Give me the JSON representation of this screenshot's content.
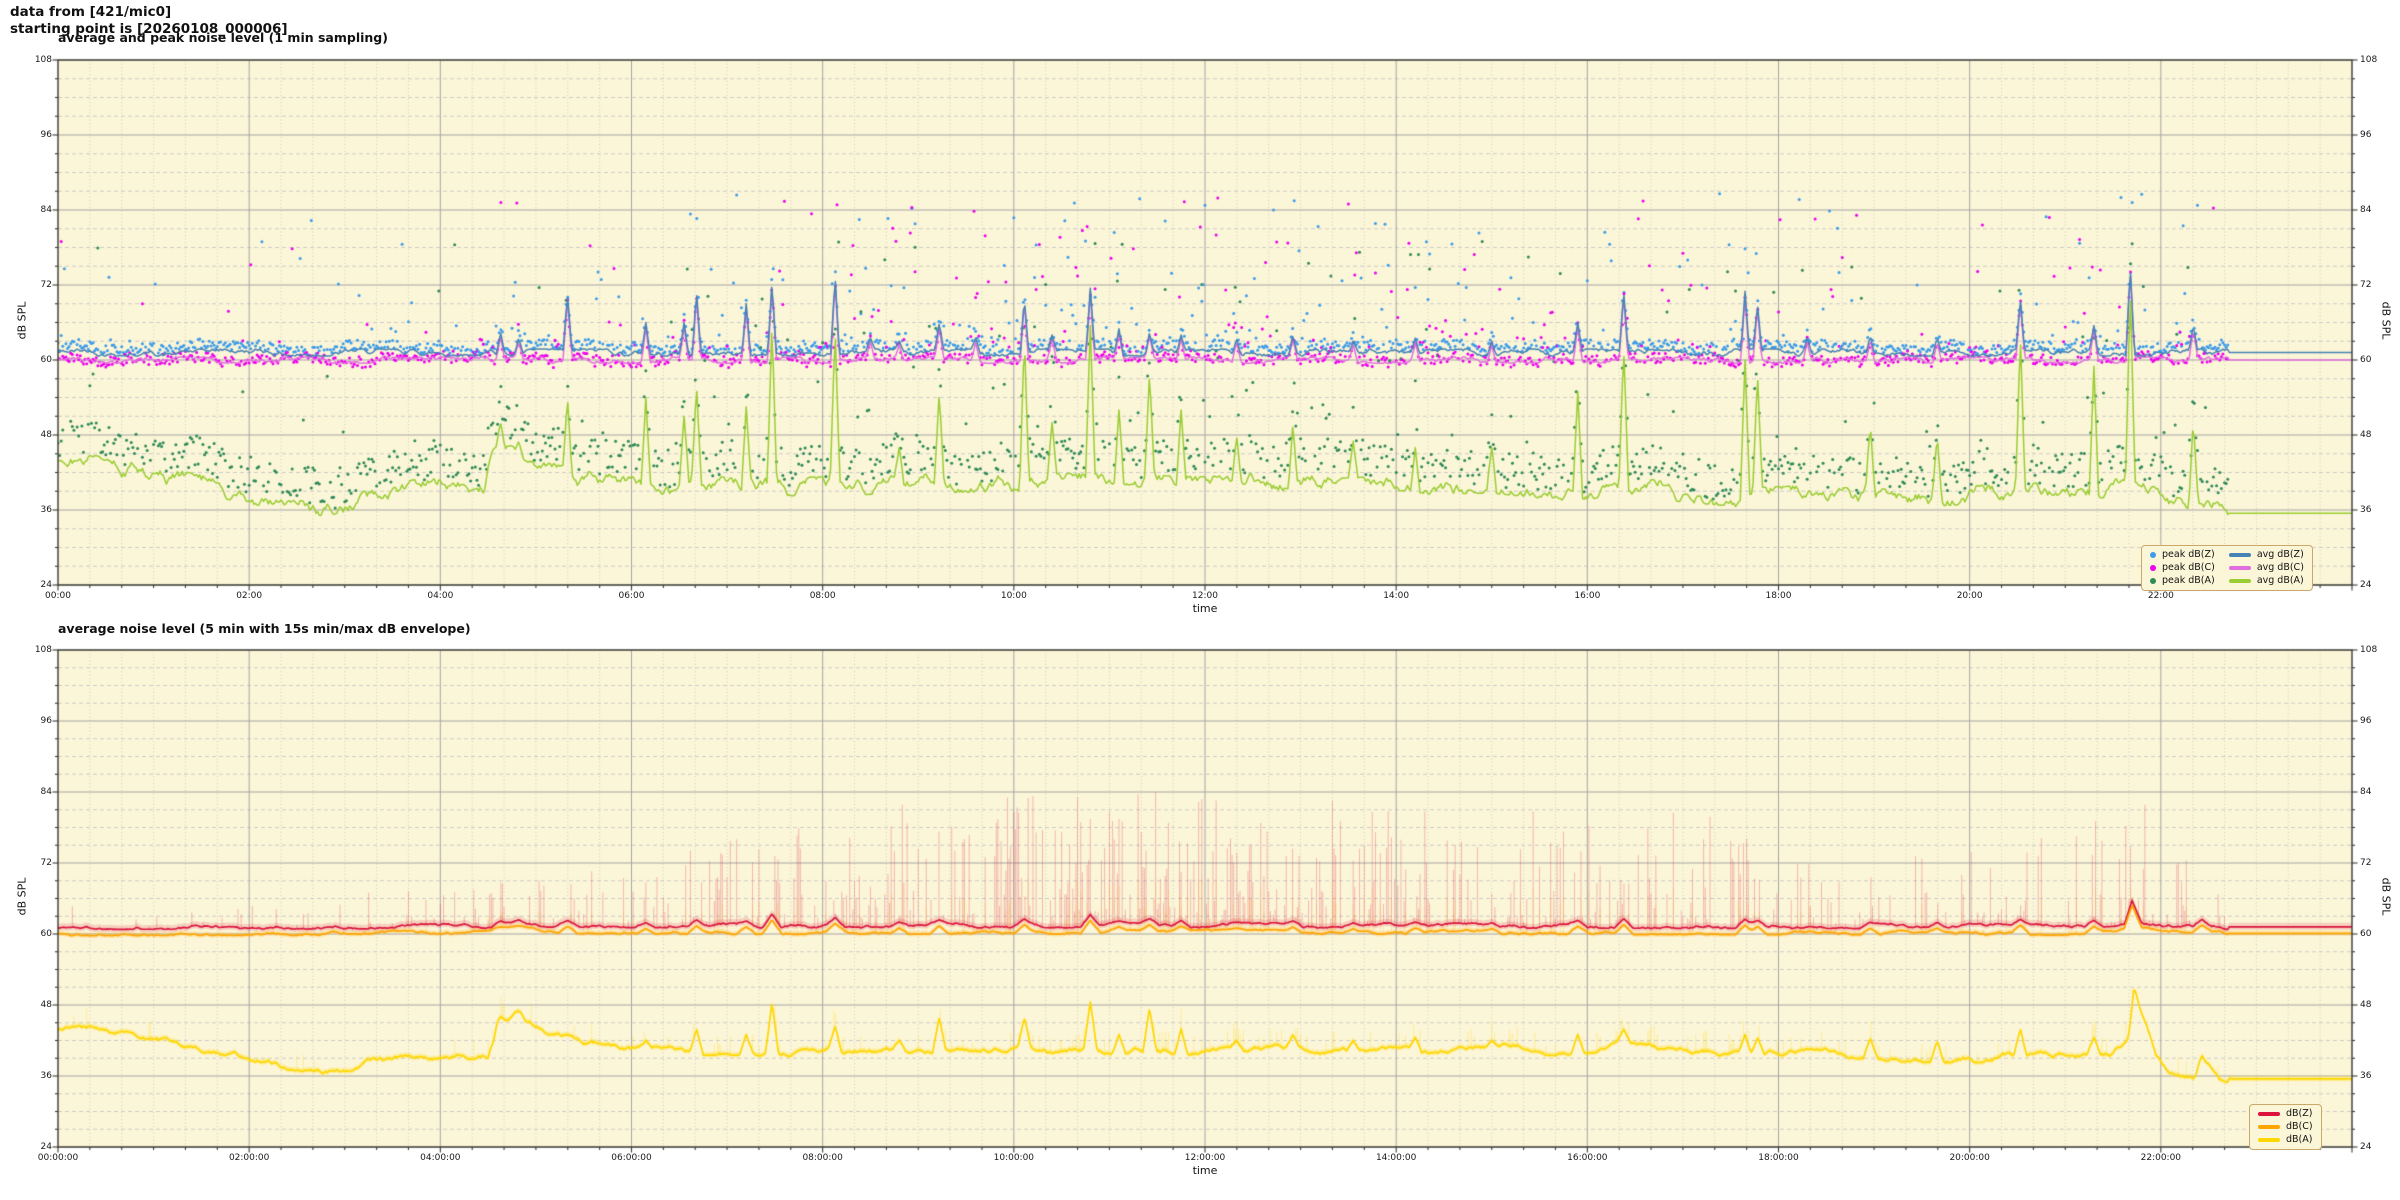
{
  "header": {
    "line1": "data from [421/mic0]",
    "line2": "starting point is [20260108_000006]"
  },
  "labels": {
    "time": "time",
    "db_spl": "dB SPL"
  },
  "colors": {
    "figure_bg": "#ffffff",
    "plot_bg": "#fcf6d8",
    "spine": "#3a3a32",
    "grid_major": "#a5a5a5",
    "grid_minor": "#c7c7c7",
    "tick_text": "#1a1a1a",
    "legend_bg": "#fcf6d8",
    "legend_border": "#c9a86a",
    "peak_z": "#3d9ce9",
    "peak_c": "#ee00ee",
    "peak_a": "#2e8b57",
    "avg_z": "#4682b4",
    "avg_c": "#e26ede",
    "avg_a": "#9acd32",
    "db_z": "#dc143c",
    "db_c": "#ffa500",
    "db_a": "#ffd700",
    "envelope": "rgba(220,20,60,0.28)",
    "envelope_band": "rgba(220,20,60,0.16)",
    "envelope_c": "rgba(255,165,0,0.22)",
    "envelope_a": "rgba(255,215,0,0.30)"
  },
  "chart_data": [
    {
      "type": "line+scatter",
      "title": "average and peak noise level (1 min sampling)",
      "xlabel": "time",
      "ylabel": "dB SPL",
      "ylim": [
        24,
        108
      ],
      "y_major_step": 12,
      "y_minor_step": 3,
      "x_hours": 24,
      "x_major_step_hours": 2,
      "x_minor_step_hours": 0.33333,
      "x_tick_labels": [
        "00:00",
        "02:00",
        "04:00",
        "06:00",
        "08:00",
        "10:00",
        "12:00",
        "14:00",
        "16:00",
        "18:00",
        "20:00",
        "22:00"
      ],
      "y_tick_labels": [
        "108",
        "96",
        "84",
        "72",
        "60",
        "48",
        "36",
        "24"
      ],
      "data_end_hour": 22.7,
      "grid": true,
      "legend_entries": [
        {
          "label": "peak dB(Z)",
          "marker": "dot",
          "color_key": "peak_z"
        },
        {
          "label": "peak dB(C)",
          "marker": "dot",
          "color_key": "peak_c"
        },
        {
          "label": "peak dB(A)",
          "marker": "dot",
          "color_key": "peak_a"
        },
        {
          "label": "avg dB(Z)",
          "marker": "line",
          "color_key": "avg_z"
        },
        {
          "label": "avg dB(C)",
          "marker": "line",
          "color_key": "avg_c"
        },
        {
          "label": "avg dB(A)",
          "marker": "line",
          "color_key": "avg_a"
        }
      ],
      "series": {
        "avg_z": {
          "label": "avg dB(Z)",
          "baseline_db": 61.2,
          "noise_db": 0.35
        },
        "avg_c": {
          "label": "avg dB(C)",
          "baseline_db": 60.0,
          "noise_db": 0.3
        },
        "avg_a": {
          "label": "avg dB(A)",
          "noise_db": 0.9,
          "base_path": [
            [
              0,
              43.5
            ],
            [
              0.6,
              43
            ],
            [
              1.2,
              41
            ],
            [
              2.0,
              38.5
            ],
            [
              2.8,
              36.5
            ],
            [
              3.2,
              38
            ],
            [
              3.8,
              39.5
            ],
            [
              4.45,
              39.5
            ],
            [
              4.55,
              45.5
            ],
            [
              4.75,
              46.5
            ],
            [
              5.0,
              44.5
            ],
            [
              5.15,
              42
            ],
            [
              5.6,
              40.5
            ],
            [
              6.2,
              39.5
            ],
            [
              7.0,
              39.8
            ],
            [
              8.0,
              39.8
            ],
            [
              9.0,
              40.2
            ],
            [
              10.0,
              40.5
            ],
            [
              11.0,
              40.2
            ],
            [
              12.0,
              39.8
            ],
            [
              12.7,
              40.5
            ],
            [
              13.4,
              39.6
            ],
            [
              14.1,
              40
            ],
            [
              15.0,
              40.2
            ],
            [
              15.8,
              39
            ],
            [
              16.4,
              39.8
            ],
            [
              17.0,
              38.8
            ],
            [
              17.6,
              38
            ],
            [
              18.3,
              38.4
            ],
            [
              19.0,
              37.8
            ],
            [
              19.7,
              38.2
            ],
            [
              20.4,
              38.6
            ],
            [
              21.0,
              39
            ],
            [
              21.5,
              39.6
            ],
            [
              21.9,
              38.5
            ],
            [
              22.15,
              36.5
            ],
            [
              22.45,
              36
            ],
            [
              22.7,
              35.5
            ],
            [
              24,
              35.5
            ]
          ]
        }
      },
      "spike_width_hours": 0.045,
      "spike_events": [
        [
          4.63,
          64.5,
          50
        ],
        [
          4.82,
          63.5,
          47
        ],
        [
          5.33,
          70.5,
          54
        ],
        [
          6.15,
          66,
          54
        ],
        [
          6.55,
          66,
          51
        ],
        [
          6.68,
          71,
          56
        ],
        [
          7.2,
          69,
          52.5
        ],
        [
          7.47,
          72.5,
          66
        ],
        [
          8.13,
          73.5,
          65
        ],
        [
          8.5,
          63.5,
          null
        ],
        [
          8.8,
          63,
          46
        ],
        [
          9.22,
          66,
          55
        ],
        [
          9.6,
          63.5,
          null
        ],
        [
          10.11,
          70,
          64
        ],
        [
          10.4,
          64,
          50
        ],
        [
          10.8,
          71.5,
          65.5
        ],
        [
          11.1,
          65,
          52
        ],
        [
          11.42,
          64.5,
          58
        ],
        [
          11.75,
          64,
          52
        ],
        [
          12.33,
          63.5,
          48
        ],
        [
          12.92,
          64,
          50
        ],
        [
          13.55,
          63,
          47
        ],
        [
          14.2,
          63.5,
          46
        ],
        [
          15,
          63,
          46
        ],
        [
          15.9,
          66,
          55
        ],
        [
          16.38,
          71,
          62
        ],
        [
          17.65,
          71,
          60
        ],
        [
          17.78,
          69,
          58
        ],
        [
          18.3,
          63.5,
          null
        ],
        [
          18.96,
          64,
          50
        ],
        [
          19.66,
          63.5,
          48
        ],
        [
          20.53,
          70,
          64
        ],
        [
          21.3,
          65.5,
          59
        ],
        [
          21.68,
          75,
          71.5
        ],
        [
          22.34,
          65.5,
          50.5
        ]
      ],
      "scatter": {
        "peak_z": {
          "band_offset": 0.15,
          "band_spread": 1.5,
          "outlier_min": 63,
          "outlier_max": 87
        },
        "peak_c": {
          "band_offset": -0.7,
          "band_spread": 1.7,
          "outlier_min": 62,
          "outlier_max": 86
        },
        "peak_a": {
          "band_offset": 0.8,
          "band_spread": 5.5,
          "outlier_rise": 5,
          "outlier_max": 79
        },
        "outlier_prob_profile": [
          [
            0,
            0.05
          ],
          [
            4.5,
            0.1
          ],
          [
            6,
            0.12
          ],
          [
            9,
            0.28
          ],
          [
            12,
            0.3
          ],
          [
            15,
            0.2
          ],
          [
            16,
            0.25
          ],
          [
            19,
            0.12
          ],
          [
            20,
            0.1
          ],
          [
            21,
            0.18
          ],
          [
            22.3,
            0.15
          ],
          [
            22.7,
            0
          ]
        ]
      }
    },
    {
      "type": "line+envelope",
      "title": "average noise level (5 min with 15s min/max dB envelope)",
      "xlabel": "time",
      "ylabel": "dB SPL",
      "ylim": [
        24,
        108
      ],
      "y_major_step": 12,
      "y_minor_step": 3,
      "x_hours": 24,
      "x_major_step_hours": 2,
      "x_minor_step_hours": 0.33333,
      "x_tick_labels": [
        "00:00:00",
        "02:00:00",
        "04:00:00",
        "06:00:00",
        "08:00:00",
        "10:00:00",
        "12:00:00",
        "14:00:00",
        "16:00:00",
        "18:00:00",
        "20:00:00",
        "22:00:00"
      ],
      "y_tick_labels": [
        "108",
        "96",
        "84",
        "72",
        "60",
        "48",
        "36",
        "24"
      ],
      "data_end_hour": 22.7,
      "grid": true,
      "legend_entries": [
        {
          "label": "dB(Z)",
          "marker": "line",
          "color_key": "db_z"
        },
        {
          "label": "dB(C)",
          "marker": "line",
          "color_key": "db_c"
        },
        {
          "label": "dB(A)",
          "marker": "line",
          "color_key": "db_a"
        }
      ],
      "series": {
        "db_z": {
          "label": "dB(Z)",
          "noise_db": 0.3,
          "base_path": [
            [
              0,
              61.2
            ],
            [
              4.5,
              61.3
            ],
            [
              4.72,
              62.1
            ],
            [
              5.1,
              61.6
            ],
            [
              7,
              61.4
            ],
            [
              12,
              61.5
            ],
            [
              16,
              61.4
            ],
            [
              21,
              61.3
            ],
            [
              21.62,
              61.8
            ],
            [
              21.7,
              65.8
            ],
            [
              21.8,
              62
            ],
            [
              22,
              61.3
            ],
            [
              22.7,
              61.2
            ],
            [
              24,
              61.2
            ]
          ]
        },
        "db_c": {
          "label": "dB(C)",
          "offset_from_z": -1.1,
          "noise_db": 0.25
        },
        "db_a": {
          "label": "dB(A)",
          "noise_db": 0.5,
          "base_path": [
            [
              0,
              44
            ],
            [
              0.6,
              43.5
            ],
            [
              1.2,
              42
            ],
            [
              2.0,
              38.8
            ],
            [
              2.8,
              36.8
            ],
            [
              3.3,
              38.3
            ],
            [
              4.0,
              39.3
            ],
            [
              4.5,
              39.8
            ],
            [
              4.62,
              45.5
            ],
            [
              4.8,
              46.8
            ],
            [
              5.0,
              45
            ],
            [
              5.2,
              43
            ],
            [
              5.6,
              41.2
            ],
            [
              6.2,
              40.2
            ],
            [
              7.0,
              40.3
            ],
            [
              8.0,
              40
            ],
            [
              9.0,
              40.6
            ],
            [
              10.0,
              40.8
            ],
            [
              11.0,
              40.4
            ],
            [
              12.0,
              40
            ],
            [
              12.8,
              40.6
            ],
            [
              13.5,
              40
            ],
            [
              14.2,
              40.3
            ],
            [
              15.0,
              40.8
            ],
            [
              15.7,
              40.2
            ],
            [
              16.3,
              41
            ],
            [
              17.0,
              40.3
            ],
            [
              17.7,
              40
            ],
            [
              18.4,
              40.2
            ],
            [
              19.1,
              39.3
            ],
            [
              19.8,
              38.9
            ],
            [
              20.5,
              39.2
            ],
            [
              21.1,
              39.6
            ],
            [
              21.5,
              40.1
            ],
            [
              21.66,
              43
            ],
            [
              21.72,
              51.5
            ],
            [
              21.82,
              46
            ],
            [
              21.95,
              40
            ],
            [
              22.1,
              37
            ],
            [
              22.35,
              36.2
            ],
            [
              22.5,
              38.8
            ],
            [
              22.62,
              36
            ],
            [
              22.75,
              35.5
            ],
            [
              24,
              35.5
            ]
          ]
        }
      },
      "spike_width_hours": 0.1,
      "spike_width_hours_a": 0.07,
      "spike_events": [
        [
          4.63,
          62.2,
          46
        ],
        [
          4.82,
          62.4,
          47
        ],
        [
          5.33,
          62.3,
          43
        ],
        [
          6.15,
          61.9,
          42
        ],
        [
          6.68,
          62.4,
          44
        ],
        [
          7.2,
          62.2,
          43
        ],
        [
          7.47,
          63.4,
          48.5
        ],
        [
          8.13,
          62.8,
          44.5
        ],
        [
          8.8,
          62,
          42
        ],
        [
          9.22,
          62.4,
          46
        ],
        [
          10.11,
          62.6,
          46
        ],
        [
          10.8,
          63.3,
          48.5
        ],
        [
          11.1,
          62.2,
          43
        ],
        [
          11.42,
          62.6,
          47.5
        ],
        [
          11.75,
          62.3,
          44
        ],
        [
          12.33,
          62,
          42
        ],
        [
          12.92,
          62.2,
          43
        ],
        [
          13.55,
          61.9,
          42
        ],
        [
          14.2,
          62,
          42.5
        ],
        [
          15,
          61.9,
          42
        ],
        [
          15.9,
          62.3,
          43
        ],
        [
          16.38,
          62.6,
          44
        ],
        [
          17.65,
          62.5,
          43
        ],
        [
          17.78,
          62.3,
          42.5
        ],
        [
          18.96,
          62,
          42.5
        ],
        [
          19.66,
          62,
          42
        ],
        [
          20.53,
          62.5,
          44
        ],
        [
          21.3,
          62.3,
          42.5
        ],
        [
          22.43,
          62.5,
          39.5
        ]
      ],
      "envelope": {
        "profile": [
          [
            0,
            0.12,
            65
          ],
          [
            2,
            0.12,
            66
          ],
          [
            4.5,
            0.3,
            70
          ],
          [
            6,
            0.3,
            74
          ],
          [
            7,
            0.35,
            76
          ],
          [
            9,
            0.65,
            84
          ],
          [
            11,
            0.7,
            85
          ],
          [
            13,
            0.65,
            84
          ],
          [
            15,
            0.45,
            80
          ],
          [
            16,
            0.55,
            82
          ],
          [
            17.5,
            0.5,
            80
          ],
          [
            19,
            0.3,
            76
          ],
          [
            20,
            0.3,
            74
          ],
          [
            21,
            0.45,
            80
          ],
          [
            21.7,
            0.5,
            86
          ],
          [
            22.4,
            0.3,
            70
          ],
          [
            22.69,
            0.15,
            66
          ],
          [
            22.7,
            0,
            24
          ],
          [
            24,
            0,
            24
          ]
        ]
      }
    }
  ]
}
